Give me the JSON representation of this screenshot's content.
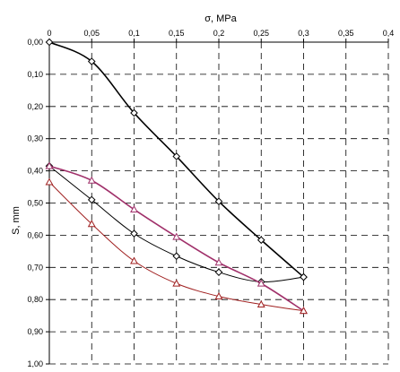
{
  "chart_data": {
    "type": "line",
    "xlabel": "σ, MPa",
    "ylabel": "S, mm",
    "xlim": [
      0,
      0.4
    ],
    "ylim": [
      0,
      1.0
    ],
    "y_reversed": true,
    "x_axis_position": "top",
    "grid": true,
    "grid_style": "dashed",
    "x_ticks": [
      "0",
      "0,05",
      "0,1",
      "0,15",
      "0,2",
      "0,25",
      "0,3",
      "0,35",
      "0,4"
    ],
    "y_ticks": [
      "0,00",
      "0,10",
      "0,20",
      "0,30",
      "0,40",
      "0,50",
      "0,60",
      "0,70",
      "0,80",
      "0,90",
      "1,00"
    ],
    "series": [
      {
        "color": "#000000",
        "marker": "diamond",
        "stroke_width": 1.6,
        "x": [
          0,
          0.05,
          0.1,
          0.15,
          0.2,
          0.25,
          0.3
        ],
        "y": [
          0.0,
          0.06,
          0.22,
          0.355,
          0.495,
          0.615,
          0.73
        ]
      },
      {
        "color": "#000000",
        "marker": "diamond",
        "stroke_width": 1.0,
        "x": [
          0,
          0.05,
          0.1,
          0.15,
          0.2,
          0.25,
          0.3
        ],
        "y": [
          0.385,
          0.49,
          0.595,
          0.665,
          0.715,
          0.745,
          0.73
        ]
      },
      {
        "color": "#a0306a",
        "marker": "triangle",
        "stroke_width": 1.6,
        "x": [
          0,
          0.05,
          0.1,
          0.15,
          0.2,
          0.25,
          0.3
        ],
        "y": [
          0.385,
          0.43,
          0.52,
          0.605,
          0.685,
          0.75,
          0.835
        ]
      },
      {
        "color": "#a02020",
        "marker": "triangle",
        "stroke_width": 1.0,
        "x": [
          0,
          0.05,
          0.1,
          0.15,
          0.2,
          0.25,
          0.3
        ],
        "y": [
          0.435,
          0.565,
          0.68,
          0.75,
          0.79,
          0.815,
          0.835
        ]
      }
    ]
  }
}
